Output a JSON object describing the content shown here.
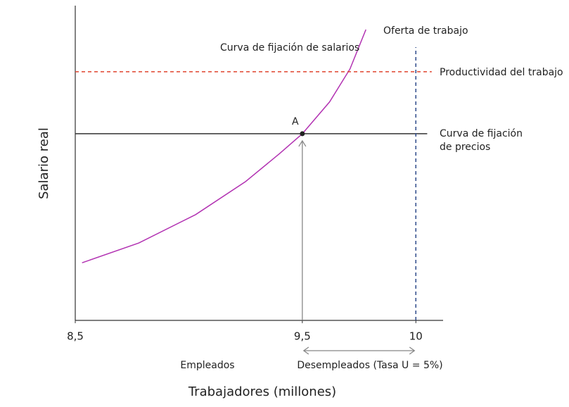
{
  "chart_data": {
    "type": "line",
    "xlabel": "Trabajadores (millones)",
    "ylabel": "Salario real",
    "xlim": [
      8.5,
      10.12
    ],
    "ylim": [
      0,
      10
    ],
    "xticks": [
      {
        "value": 8.5,
        "label": "8,5"
      },
      {
        "value": 9.5,
        "label": "9,5"
      },
      10
    ],
    "grid": false,
    "series": [
      {
        "name": [
          "Curva de fijación de salarios"
        ],
        "color": "#b232b2",
        "dash": false,
        "x": [
          8.53,
          8.78,
          9.03,
          9.25,
          9.4,
          9.5,
          9.62,
          9.71,
          9.78
        ],
        "values": [
          1.83,
          2.46,
          3.36,
          4.41,
          5.3,
          5.93,
          6.94,
          7.99,
          9.24
        ]
      },
      {
        "name": [
          "Curva de fijación",
          "de precios"
        ],
        "color": "#333333",
        "dash": false,
        "x": [
          8.5,
          10.05
        ],
        "values": [
          5.93,
          5.93
        ]
      },
      {
        "name": [
          "Productividad del trabajo"
        ],
        "color": "#e0452f",
        "dash": true,
        "x": [
          8.5,
          10.07
        ],
        "values": [
          7.9,
          7.9
        ]
      },
      {
        "name": [
          "Oferta de trabajo"
        ],
        "color": "#2e4a8a",
        "dash": true,
        "x": [
          10,
          10
        ],
        "values": [
          0,
          8.68
        ]
      }
    ],
    "point": {
      "label": "A",
      "x": 9.5,
      "y": 5.93
    },
    "annotations": [
      "Empleados",
      "Desempleados (Tasa U = 5%)"
    ]
  }
}
